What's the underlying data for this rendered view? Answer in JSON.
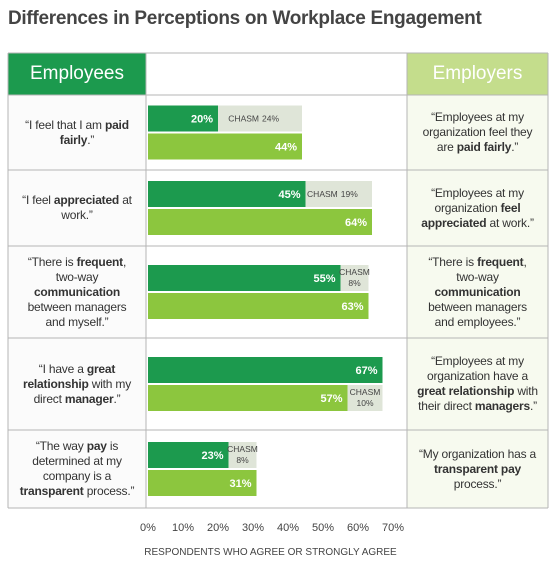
{
  "chart_data": {
    "type": "bar",
    "title": "Differences in Perceptions on Workplace Engagement",
    "series": [
      {
        "name": "Employees",
        "color": "#1c9a4e",
        "values": [
          20,
          45,
          55,
          67,
          23
        ],
        "value_labels": [
          "20%",
          "45%",
          "55%",
          "67%",
          "23%"
        ],
        "quotes": [
          [
            {
              "text": "“I feel that I am ",
              "bold": false
            },
            {
              "text": "paid fairly",
              "bold": true
            },
            {
              "text": ".”",
              "bold": false
            }
          ],
          [
            {
              "text": "“I feel ",
              "bold": false
            },
            {
              "text": "appreciated",
              "bold": true
            },
            {
              "text": " at work.”",
              "bold": false
            }
          ],
          [
            {
              "text": "“There is ",
              "bold": false
            },
            {
              "text": "frequent",
              "bold": true
            },
            {
              "text": ", two-way ",
              "bold": false
            },
            {
              "text": "communication",
              "bold": true
            },
            {
              "text": " between managers and myself.”",
              "bold": false
            }
          ],
          [
            {
              "text": "“I have a ",
              "bold": false
            },
            {
              "text": "great relationship",
              "bold": true
            },
            {
              "text": " with my direct ",
              "bold": false
            },
            {
              "text": "manager",
              "bold": true
            },
            {
              "text": ".”",
              "bold": false
            }
          ],
          [
            {
              "text": "“The way ",
              "bold": false
            },
            {
              "text": "pay",
              "bold": true
            },
            {
              "text": " is determined at my company is a ",
              "bold": false
            },
            {
              "text": "transparent",
              "bold": true
            },
            {
              "text": " process.”",
              "bold": false
            }
          ]
        ]
      },
      {
        "name": "Employers",
        "color": "#8cc63e",
        "values": [
          44,
          64,
          63,
          57,
          31
        ],
        "value_labels": [
          "44%",
          "64%",
          "63%",
          "57%",
          "31%"
        ],
        "quotes": [
          [
            {
              "text": "“Employees at my organization feel they are ",
              "bold": false
            },
            {
              "text": "paid fairly",
              "bold": true
            },
            {
              "text": ".”",
              "bold": false
            }
          ],
          [
            {
              "text": "“Employees at my organization ",
              "bold": false
            },
            {
              "text": "feel appreciated",
              "bold": true
            },
            {
              "text": " at work.”",
              "bold": false
            }
          ],
          [
            {
              "text": "“There is ",
              "bold": false
            },
            {
              "text": "frequent",
              "bold": true
            },
            {
              "text": ", two-way ",
              "bold": false
            },
            {
              "text": "communication",
              "bold": true
            },
            {
              "text": " between managers and employees.”",
              "bold": false
            }
          ],
          [
            {
              "text": "“Employees at my organization have a ",
              "bold": false
            },
            {
              "text": "great relationship",
              "bold": true
            },
            {
              "text": " with their direct ",
              "bold": false
            },
            {
              "text": "managers",
              "bold": true
            },
            {
              "text": ".”",
              "bold": false
            }
          ],
          [
            {
              "text": "“My organization has a ",
              "bold": false
            },
            {
              "text": "transparent pay",
              "bold": true
            },
            {
              "text": " process.”",
              "bold": false
            }
          ]
        ]
      }
    ],
    "chasm": {
      "name": "CHASM",
      "color": "#dfe5d8",
      "values": [
        24,
        19,
        8,
        10,
        8
      ],
      "value_labels": [
        "24%",
        "19%",
        "8%",
        "10%",
        "8%"
      ]
    },
    "xlim": [
      0,
      70
    ],
    "xticks": [
      {
        "value": 0,
        "label": "0%"
      },
      {
        "value": 10,
        "label": "10%"
      },
      {
        "value": 20,
        "label": "20%"
      },
      {
        "value": 30,
        "label": "30%"
      },
      {
        "value": 40,
        "label": "40%"
      },
      {
        "value": 50,
        "label": "50%"
      },
      {
        "value": 60,
        "label": "60%"
      },
      {
        "value": 70,
        "label": "70%"
      }
    ],
    "xlabel": "RESPONDENTS WHO AGREE OR STRONGLY AGREE"
  }
}
